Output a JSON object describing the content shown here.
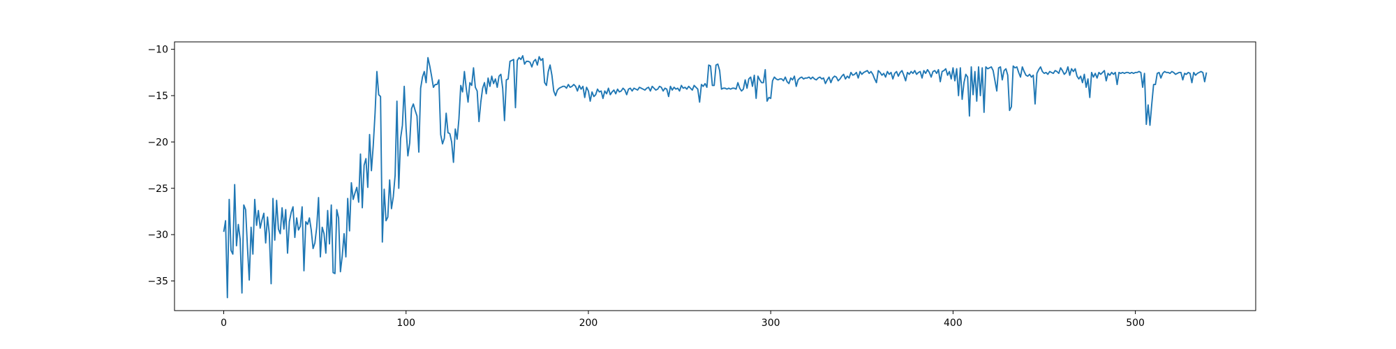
{
  "chart_data": {
    "type": "line",
    "color": "#1f77b4",
    "xlim": [
      -27,
      566
    ],
    "xticks": [
      0,
      100,
      200,
      300,
      400,
      500
    ],
    "ylim": [
      -38.2,
      -9.2
    ],
    "yticks": [
      {
        "value": -35,
        "label": "−35"
      },
      {
        "value": -30,
        "label": "−30"
      },
      {
        "value": -25,
        "label": "−25"
      },
      {
        "value": -20,
        "label": "−20"
      },
      {
        "value": -15,
        "label": "−15"
      },
      {
        "value": -10,
        "label": "−10"
      }
    ],
    "values": [
      -29.7,
      -28.5,
      -36.8,
      -26.2,
      -31.7,
      -32.1,
      -24.6,
      -31.2,
      -28.9,
      -30.5,
      -36.3,
      -26.8,
      -27.3,
      -31.3,
      -34.9,
      -29.2,
      -32.1,
      -26.2,
      -29.0,
      -27.4,
      -29.3,
      -28.4,
      -27.7,
      -30.9,
      -28.1,
      -29.9,
      -35.3,
      -26.1,
      -30.6,
      -26.3,
      -29.4,
      -29.9,
      -27.1,
      -29.4,
      -27.3,
      -32.0,
      -28.6,
      -27.6,
      -27.0,
      -30.3,
      -28.2,
      -29.5,
      -29.1,
      -27.0,
      -33.9,
      -28.6,
      -28.9,
      -28.2,
      -29.5,
      -31.5,
      -30.9,
      -29.2,
      -26.0,
      -32.4,
      -29.2,
      -29.9,
      -32.0,
      -27.4,
      -31.0,
      -26.8,
      -34.1,
      -34.2,
      -27.3,
      -28.2,
      -34.0,
      -32.3,
      -29.9,
      -32.4,
      -26.1,
      -29.6,
      -24.4,
      -26.2,
      -25.5,
      -24.9,
      -26.5,
      -21.3,
      -27.1,
      -22.5,
      -21.8,
      -24.9,
      -19.2,
      -23.1,
      -20.4,
      -16.9,
      -12.4,
      -14.9,
      -15.1,
      -30.8,
      -25.1,
      -28.5,
      -28.1,
      -24.1,
      -27.2,
      -25.9,
      -23.6,
      -15.6,
      -25.0,
      -19.6,
      -18.2,
      -14.0,
      -18.5,
      -21.5,
      -20.1,
      -16.4,
      -15.9,
      -16.6,
      -17.2,
      -21.1,
      -14.2,
      -13.0,
      -12.4,
      -13.6,
      -10.9,
      -11.8,
      -12.9,
      -14.1,
      -13.8,
      -13.8,
      -13.3,
      -19.2,
      -20.2,
      -19.6,
      -16.9,
      -19.0,
      -19.1,
      -20.0,
      -22.2,
      -18.6,
      -19.7,
      -17.5,
      -13.9,
      -14.6,
      -12.4,
      -14.2,
      -15.7,
      -13.6,
      -13.9,
      -12.0,
      -14.1,
      -14.5,
      -17.8,
      -15.7,
      -14.2,
      -13.6,
      -14.8,
      -13.1,
      -14.0,
      -12.9,
      -13.7,
      -13.2,
      -14.1,
      -12.9,
      -12.7,
      -14.2,
      -17.7,
      -13.3,
      -13.2,
      -11.3,
      -11.2,
      -11.1,
      -16.3,
      -11.2,
      -10.9,
      -11.1,
      -10.7,
      -11.6,
      -11.3,
      -11.3,
      -11.4,
      -11.9,
      -11.3,
      -11.1,
      -11.7,
      -10.8,
      -11.2,
      -11.0,
      -13.6,
      -13.9,
      -12.4,
      -11.7,
      -12.8,
      -14.5,
      -15.0,
      -14.4,
      -14.2,
      -14.1,
      -14.0,
      -14.0,
      -14.2,
      -13.8,
      -14.1,
      -14.0,
      -13.8,
      -14.0,
      -14.5,
      -13.9,
      -14.3,
      -14.0,
      -15.2,
      -14.1,
      -14.5,
      -15.6,
      -14.6,
      -15.1,
      -14.9,
      -14.3,
      -14.6,
      -14.5,
      -15.3,
      -14.5,
      -14.8,
      -14.2,
      -14.9,
      -14.6,
      -14.4,
      -14.8,
      -14.3,
      -14.6,
      -14.5,
      -14.2,
      -14.4,
      -14.9,
      -14.3,
      -14.2,
      -14.5,
      -14.2,
      -14.3,
      -14.4,
      -14.1,
      -14.2,
      -14.3,
      -14.4,
      -14.2,
      -14.1,
      -14.5,
      -14.0,
      -14.2,
      -14.4,
      -14.3,
      -14.0,
      -14.1,
      -14.5,
      -14.2,
      -14.3,
      -15.1,
      -14.0,
      -14.4,
      -14.1,
      -14.3,
      -14.2,
      -14.5,
      -13.9,
      -14.2,
      -14.1,
      -14.3,
      -14.0,
      -14.2,
      -14.4,
      -13.9,
      -14.1,
      -14.3,
      -15.7,
      -13.8,
      -14.0,
      -13.7,
      -14.1,
      -11.7,
      -11.8,
      -13.9,
      -13.9,
      -11.7,
      -11.6,
      -12.3,
      -14.3,
      -14.2,
      -14.2,
      -14.3,
      -14.2,
      -14.3,
      -14.2,
      -14.2,
      -14.3,
      -13.6,
      -14.2,
      -14.5,
      -14.3,
      -13.3,
      -14.2,
      -13.2,
      -13.0,
      -14.0,
      -12.8,
      -15.3,
      -12.9,
      -13.3,
      -13.6,
      -13.6,
      -12.2,
      -15.6,
      -15.2,
      -15.3,
      -13.4,
      -13.0,
      -13.2,
      -13.3,
      -13.2,
      -13.2,
      -13.4,
      -13.0,
      -13.5,
      -13.7,
      -13.1,
      -13.3,
      -12.9,
      -14.0,
      -13.3,
      -13.1,
      -13.0,
      -13.2,
      -13.1,
      -13.1,
      -13.0,
      -13.2,
      -13.0,
      -13.2,
      -13.3,
      -13.1,
      -13.0,
      -13.2,
      -13.1,
      -13.7,
      -13.3,
      -13.0,
      -13.6,
      -13.1,
      -12.9,
      -13.0,
      -13.4,
      -13.2,
      -12.9,
      -12.7,
      -13.2,
      -12.9,
      -13.1,
      -12.5,
      -12.8,
      -12.7,
      -12.5,
      -13.1,
      -12.4,
      -12.7,
      -12.5,
      -12.4,
      -12.3,
      -12.6,
      -12.4,
      -12.7,
      -13.2,
      -13.6,
      -12.3,
      -12.5,
      -12.8,
      -12.6,
      -13.0,
      -12.4,
      -12.7,
      -12.5,
      -13.2,
      -12.6,
      -12.4,
      -12.9,
      -12.5,
      -12.3,
      -12.8,
      -13.4,
      -12.5,
      -12.7,
      -12.4,
      -12.6,
      -12.3,
      -12.7,
      -12.5,
      -12.4,
      -13.1,
      -12.3,
      -12.6,
      -12.2,
      -12.5,
      -13.0,
      -12.4,
      -12.3,
      -12.6,
      -12.2,
      -13.5,
      -12.4,
      -12.3,
      -12.1,
      -12.8,
      -12.4,
      -13.2,
      -12.0,
      -13.4,
      -12.1,
      -15.0,
      -12.0,
      -15.4,
      -13.6,
      -12.7,
      -13.0,
      -17.2,
      -11.9,
      -14.9,
      -12.4,
      -15.6,
      -11.9,
      -15.0,
      -12.0,
      -16.8,
      -11.9,
      -12.1,
      -12.0,
      -11.9,
      -12.3,
      -13.4,
      -14.5,
      -12.0,
      -11.9,
      -13.3,
      -12.3,
      -12.1,
      -12.8,
      -16.6,
      -16.2,
      -11.8,
      -12.0,
      -11.9,
      -12.5,
      -13.0,
      -11.9,
      -12.4,
      -12.8,
      -12.9,
      -12.7,
      -13.0,
      -12.8,
      -15.9,
      -12.6,
      -12.2,
      -11.9,
      -12.4,
      -12.6,
      -12.5,
      -12.7,
      -12.4,
      -12.5,
      -12.6,
      -12.3,
      -12.4,
      -12.6,
      -12.0,
      -12.3,
      -12.7,
      -12.5,
      -11.9,
      -12.8,
      -12.1,
      -12.4,
      -12.1,
      -12.9,
      -13.2,
      -12.9,
      -13.6,
      -12.7,
      -14.1,
      -13.2,
      -15.2,
      -12.5,
      -13.0,
      -12.6,
      -13.1,
      -12.5,
      -12.7,
      -12.5,
      -12.3,
      -13.4,
      -12.6,
      -12.8,
      -12.5,
      -12.7,
      -12.5,
      -13.8,
      -12.5,
      -12.6,
      -12.5,
      -12.6,
      -12.5,
      -12.5,
      -12.6,
      -12.5,
      -12.6,
      -12.5,
      -12.5,
      -12.4,
      -12.5,
      -14.1,
      -12.6,
      -18.1,
      -16.0,
      -18.2,
      -15.9,
      -13.8,
      -13.8,
      -12.6,
      -12.5,
      -13.1,
      -12.6,
      -12.4,
      -12.5,
      -12.5,
      -12.6,
      -12.4,
      -12.5,
      -12.7,
      -12.6,
      -12.5,
      -12.5,
      -13.3,
      -12.6,
      -12.7,
      -12.5,
      -12.6,
      -13.6,
      -12.5,
      -12.8,
      -12.6,
      -12.5,
      -12.4,
      -12.5,
      -13.5,
      -12.5
    ]
  }
}
